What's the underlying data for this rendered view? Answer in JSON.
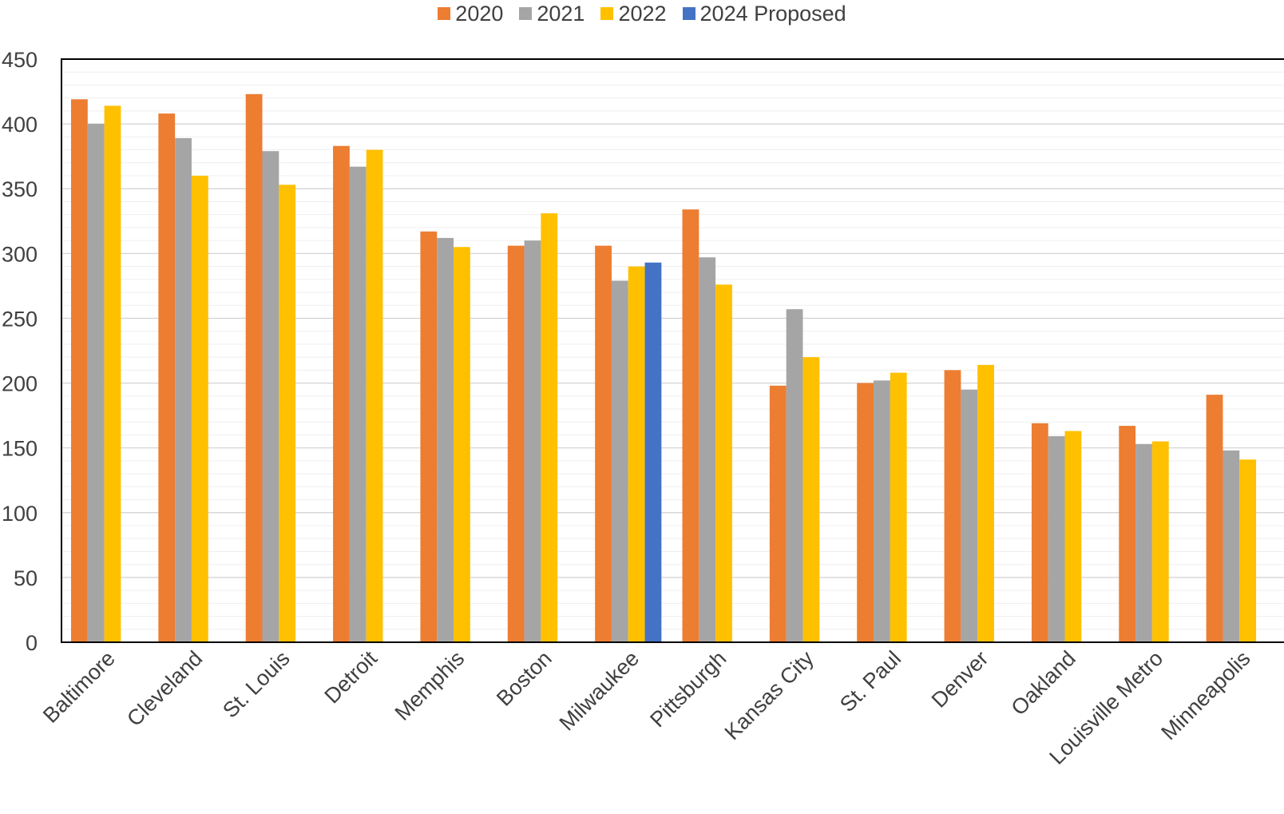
{
  "chart_data": {
    "type": "bar",
    "title": "",
    "xlabel": "",
    "ylabel": "",
    "ylim": [
      0,
      450
    ],
    "yticks": [
      0,
      50,
      100,
      150,
      200,
      250,
      300,
      350,
      400,
      450
    ],
    "grid": true,
    "legend_position": "top",
    "categories": [
      "Baltimore",
      "Cleveland",
      "St. Louis",
      "Detroit",
      "Memphis",
      "Boston",
      "Milwaukee",
      "Pittsburgh",
      "Kansas City",
      "St. Paul",
      "Denver",
      "Oakland",
      "Louisville Metro",
      "Minneapolis"
    ],
    "series": [
      {
        "name": "2020",
        "color": "#ED7D31",
        "values": [
          419,
          408,
          423,
          383,
          317,
          306,
          306,
          334,
          198,
          200,
          210,
          169,
          167,
          191
        ]
      },
      {
        "name": "2021",
        "color": "#A5A5A5",
        "values": [
          400,
          389,
          379,
          367,
          312,
          310,
          279,
          297,
          257,
          202,
          195,
          159,
          153,
          148
        ]
      },
      {
        "name": "2022",
        "color": "#FFC000",
        "values": [
          414,
          360,
          353,
          380,
          305,
          331,
          290,
          276,
          220,
          208,
          214,
          163,
          155,
          141
        ]
      },
      {
        "name": "2024 Proposed",
        "color": "#4472C4",
        "values": [
          null,
          null,
          null,
          null,
          null,
          null,
          293,
          null,
          null,
          null,
          null,
          null,
          null,
          null
        ]
      }
    ]
  }
}
